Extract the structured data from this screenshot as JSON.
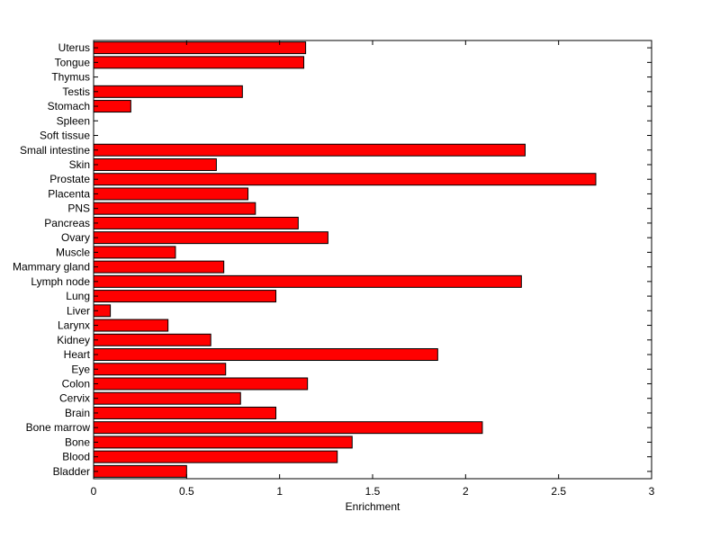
{
  "chart_data": {
    "type": "bar",
    "orientation": "horizontal",
    "title": "",
    "xlabel": "Enrichment",
    "ylabel": "",
    "xlim": [
      0,
      3
    ],
    "xticks": [
      0,
      0.5,
      1,
      1.5,
      2,
      2.5,
      3
    ],
    "xtick_labels": [
      "0",
      "0.5",
      "1",
      "1.5",
      "2",
      "2.5",
      "3"
    ],
    "grid": false,
    "bar_color": "#ff0000",
    "bar_edge_color": "#000000",
    "categories": [
      "Bladder",
      "Blood",
      "Bone",
      "Bone marrow",
      "Brain",
      "Cervix",
      "Colon",
      "Eye",
      "Heart",
      "Kidney",
      "Larynx",
      "Liver",
      "Lung",
      "Lymph node",
      "Mammary gland",
      "Muscle",
      "Ovary",
      "Pancreas",
      "PNS",
      "Placenta",
      "Prostate",
      "Skin",
      "Small intestine",
      "Soft tissue",
      "Spleen",
      "Stomach",
      "Testis",
      "Thymus",
      "Tongue",
      "Uterus"
    ],
    "values": [
      0.5,
      1.31,
      1.39,
      2.09,
      0.98,
      0.79,
      1.15,
      0.71,
      1.85,
      0.63,
      0.4,
      0.09,
      0.98,
      2.3,
      0.7,
      0.44,
      1.26,
      1.1,
      0.87,
      0.83,
      2.7,
      0.66,
      2.32,
      0,
      0,
      0.2,
      0.8,
      0,
      1.13,
      1.14
    ]
  }
}
